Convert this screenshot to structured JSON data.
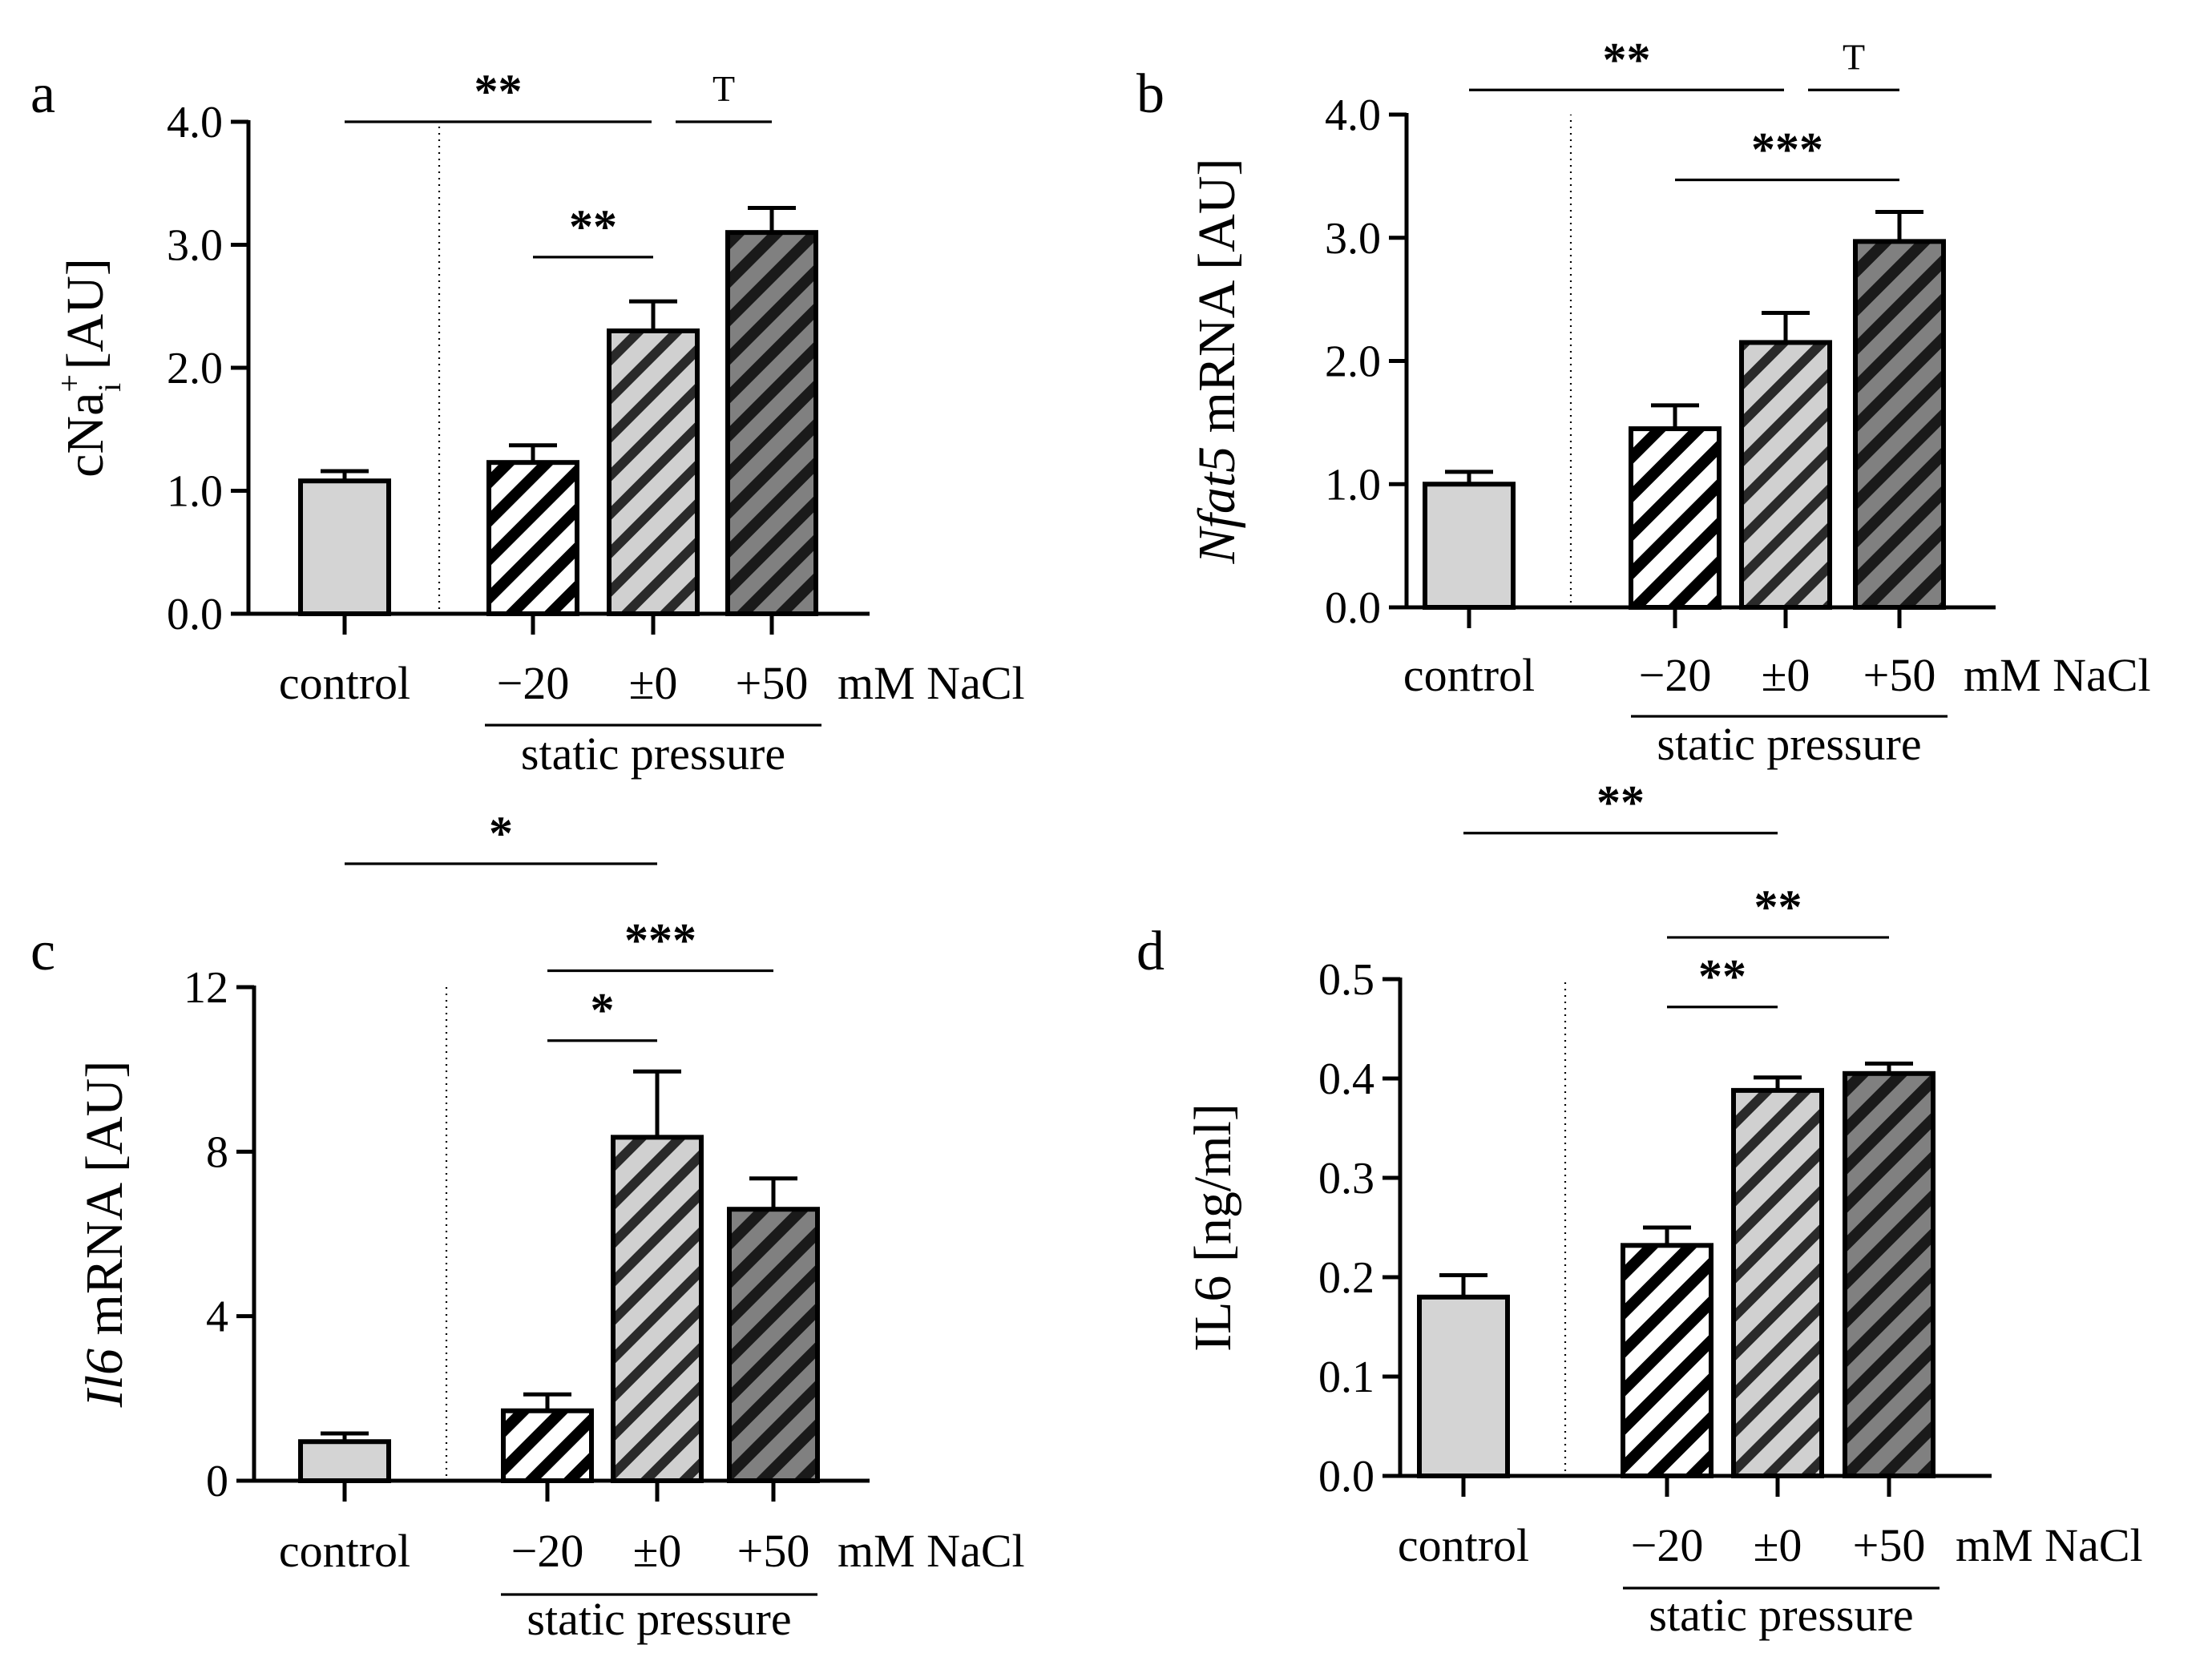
{
  "chart_data": [
    {
      "type": "bar",
      "panel_label": "a",
      "ylabel": "cNa",
      "ylabel_sup": "+",
      "ylabel_sub": "i",
      "ylabel_unit": " [AU]",
      "ylim": [
        0,
        4
      ],
      "yticks": [
        "0.0",
        "1.0",
        "2.0",
        "3.0",
        "4.0"
      ],
      "ytick_values": [
        0,
        1,
        2,
        3,
        4
      ],
      "categories": [
        "control",
        "−20",
        "±0",
        "+50"
      ],
      "values": [
        1.08,
        1.23,
        2.3,
        3.1
      ],
      "errors": [
        0.08,
        0.14,
        0.24,
        0.2
      ],
      "patterns": [
        "solid",
        "stripe-white",
        "stripe-light",
        "stripe-dark"
      ],
      "unit_label": "mM NaCl",
      "group_label": "static pressure",
      "significance": [
        {
          "from": 0,
          "to": 2,
          "label": "**",
          "level": 4.0
        },
        {
          "from": 2,
          "to": 3,
          "label": "T",
          "level": 4.0
        },
        {
          "from": 1,
          "to": 2,
          "label": "**",
          "level": 2.9
        }
      ]
    },
    {
      "type": "bar",
      "panel_label": "b",
      "ylabel": "Nfat5",
      "ylabel_unit": " mRNA [AU]",
      "ylim": [
        0,
        4
      ],
      "yticks": [
        "0.0",
        "1.0",
        "2.0",
        "3.0",
        "4.0"
      ],
      "ytick_values": [
        0,
        1,
        2,
        3,
        4
      ],
      "categories": [
        "control",
        "−20",
        "±0",
        "+50"
      ],
      "values": [
        1.0,
        1.45,
        2.15,
        2.97
      ],
      "errors": [
        0.1,
        0.19,
        0.24,
        0.24
      ],
      "patterns": [
        "solid",
        "stripe-white",
        "stripe-light",
        "stripe-dark"
      ],
      "unit_label": "mM NaCl",
      "group_label": "static pressure",
      "significance": [
        {
          "from": 0,
          "to": 2,
          "label": "**",
          "level": 4.2
        },
        {
          "from": 2,
          "to": 3,
          "label": "T",
          "level": 4.2
        },
        {
          "from": 1,
          "to": 3,
          "label": "***",
          "level": 3.47
        }
      ]
    },
    {
      "type": "bar",
      "panel_label": "c",
      "ylabel": "Il6",
      "ylabel_unit": " mRNA [AU]",
      "ylim": [
        0,
        12
      ],
      "yticks": [
        "0",
        "4",
        "8",
        "12"
      ],
      "ytick_values": [
        0,
        4,
        8,
        12
      ],
      "categories": [
        "control",
        "−20",
        "±0",
        "+50"
      ],
      "values": [
        0.95,
        1.7,
        8.35,
        6.6
      ],
      "errors": [
        0.2,
        0.4,
        1.6,
        0.75
      ],
      "patterns": [
        "solid",
        "stripe-white",
        "stripe-light",
        "stripe-dark"
      ],
      "unit_label": "mM NaCl",
      "group_label": "static pressure",
      "significance": [
        {
          "from": 0,
          "to": 2,
          "label": "*",
          "level": 15.0
        },
        {
          "from": 1,
          "to": 3,
          "label": "***",
          "level": 12.4
        },
        {
          "from": 1,
          "to": 2,
          "label": "*",
          "level": 10.7
        }
      ]
    },
    {
      "type": "bar",
      "panel_label": "d",
      "ylabel": "IL6 [ng/ml]",
      "ylim": [
        0,
        0.5
      ],
      "yticks": [
        "0.0",
        "0.1",
        "0.2",
        "0.3",
        "0.4",
        "0.5"
      ],
      "ytick_values": [
        0,
        0.1,
        0.2,
        0.3,
        0.4,
        0.5
      ],
      "categories": [
        "control",
        "−20",
        "±0",
        "+50"
      ],
      "values": [
        0.18,
        0.232,
        0.388,
        0.405
      ],
      "errors": [
        0.022,
        0.018,
        0.013,
        0.01
      ],
      "patterns": [
        "solid",
        "stripe-white",
        "stripe-light",
        "stripe-dark"
      ],
      "unit_label": "mM NaCl",
      "group_label": "static pressure",
      "significance": [
        {
          "from": 0,
          "to": 2,
          "label": "**",
          "level": 0.647
        },
        {
          "from": 1,
          "to": 3,
          "label": "**",
          "level": 0.542
        },
        {
          "from": 1,
          "to": 2,
          "label": "**",
          "level": 0.472
        }
      ]
    }
  ],
  "colors": {
    "axis": "#000000",
    "bar_solid": "#d4d4d4",
    "stripe_white_bg": "#ffffff",
    "stripe_light_bg": "#d0d0d0",
    "stripe_dark_bg": "#808080",
    "stripe": "#000000"
  }
}
